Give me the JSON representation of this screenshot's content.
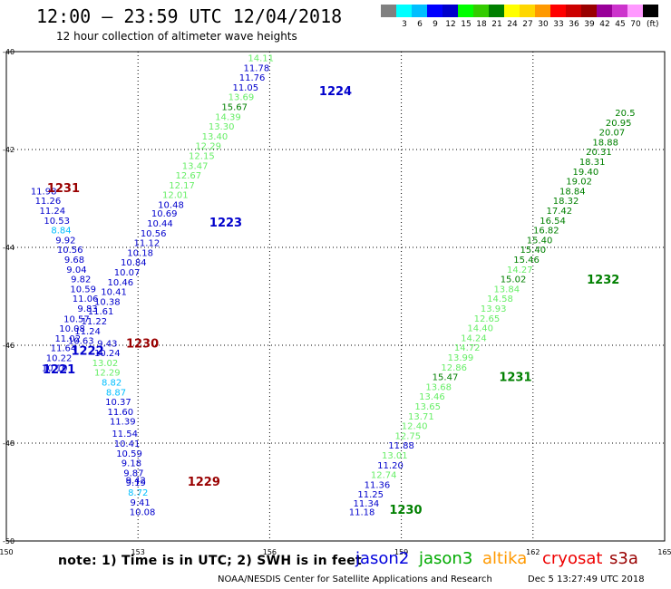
{
  "header": {
    "title": "12:00 – 23:59 UTC 12/04/2018",
    "subtitle": "12 hour collection of altimeter wave heights"
  },
  "color_scale": {
    "unit": "(ft)",
    "levels": [
      {
        "label": "",
        "color": "#808080"
      },
      {
        "label": "3",
        "color": "#00ffff"
      },
      {
        "label": "6",
        "color": "#00bfff"
      },
      {
        "label": "9",
        "color": "#0000ff"
      },
      {
        "label": "12",
        "color": "#0000cc"
      },
      {
        "label": "15",
        "color": "#00ff00"
      },
      {
        "label": "18",
        "color": "#33cc00"
      },
      {
        "label": "21",
        "color": "#008000"
      },
      {
        "label": "24",
        "color": "#ffff00"
      },
      {
        "label": "27",
        "color": "#ffd700"
      },
      {
        "label": "30",
        "color": "#ff9900"
      },
      {
        "label": "33",
        "color": "#ff0000"
      },
      {
        "label": "36",
        "color": "#cc0000"
      },
      {
        "label": "39",
        "color": "#990000"
      },
      {
        "label": "42",
        "color": "#990099"
      },
      {
        "label": "45",
        "color": "#cc33cc"
      },
      {
        "label": "70",
        "color": "#ff99ff"
      },
      {
        "label": "",
        "color": "#000000"
      }
    ]
  },
  "note": "note:  1) Time is in UTC;  2) SWH is in feet",
  "satellites": [
    {
      "name": "jason2",
      "color": "#0000dd"
    },
    {
      "name": "jason3",
      "color": "#00aa00"
    },
    {
      "name": "altika",
      "color": "#ff9900"
    },
    {
      "name": "cryosat",
      "color": "#ee0000"
    },
    {
      "name": "s3a",
      "color": "#990000"
    }
  ],
  "footer": {
    "credit": "NOAA/NESDIS Center for Satellite Applications and Research",
    "timestamp": "Dec  5 13:27:49 UTC 2018"
  },
  "chart_data": {
    "type": "scatter",
    "x_ticks": [
      "150",
      "153",
      "156",
      "159",
      "162",
      "165"
    ],
    "y_ticks": [
      "40",
      "42",
      "44",
      "46",
      "48",
      "50"
    ],
    "xlim": [
      150,
      165
    ],
    "ylim": [
      40,
      50
    ],
    "grid": true,
    "tracks": [
      {
        "label": "1224",
        "satellite": "jason2",
        "label_color": "#0000cc",
        "label_x": 157.5,
        "label_y": 40.8,
        "points": [
          {
            "x": 155.8,
            "y": 40.12,
            "v": "14.11",
            "c": "#66ee66"
          },
          {
            "x": 155.7,
            "y": 40.32,
            "v": "11.78",
            "c": "#0000cc"
          },
          {
            "x": 155.6,
            "y": 40.52,
            "v": "11.76",
            "c": "#0000cc"
          },
          {
            "x": 155.45,
            "y": 40.72,
            "v": "11.05",
            "c": "#0000cc"
          },
          {
            "x": 155.35,
            "y": 40.92,
            "v": "13.69",
            "c": "#66ee66"
          },
          {
            "x": 155.2,
            "y": 41.12,
            "v": "15.67",
            "c": "#008000"
          },
          {
            "x": 155.05,
            "y": 41.32,
            "v": "14.39",
            "c": "#66ee66"
          },
          {
            "x": 154.9,
            "y": 41.52,
            "v": "13.30",
            "c": "#66ee66"
          },
          {
            "x": 154.75,
            "y": 41.72,
            "v": "13.40",
            "c": "#66ee66"
          },
          {
            "x": 154.6,
            "y": 41.92,
            "v": "12.29",
            "c": "#66ee66"
          },
          {
            "x": 154.45,
            "y": 42.12,
            "v": "12.15",
            "c": "#66ee66"
          },
          {
            "x": 154.3,
            "y": 42.32,
            "v": "13.47",
            "c": "#66ee66"
          },
          {
            "x": 154.15,
            "y": 42.52,
            "v": "12.67",
            "c": "#66ee66"
          },
          {
            "x": 154.0,
            "y": 42.72,
            "v": "12.17",
            "c": "#66ee66"
          },
          {
            "x": 153.85,
            "y": 42.92,
            "v": "12.01",
            "c": "#66ee66"
          }
        ]
      },
      {
        "label": "1223",
        "satellite": "jason2",
        "label_color": "#0000cc",
        "label_x": 155.0,
        "label_y": 43.48,
        "points": [
          {
            "x": 153.75,
            "y": 43.12,
            "v": "10.48",
            "c": "#0000cc"
          },
          {
            "x": 153.6,
            "y": 43.3,
            "v": "10.69",
            "c": "#0000cc"
          },
          {
            "x": 153.5,
            "y": 43.5,
            "v": "10.44",
            "c": "#0000cc"
          },
          {
            "x": 153.35,
            "y": 43.7,
            "v": "10.56",
            "c": "#0000cc"
          },
          {
            "x": 153.2,
            "y": 43.9,
            "v": "11.12",
            "c": "#0000cc"
          },
          {
            "x": 153.05,
            "y": 44.1,
            "v": "10.18",
            "c": "#0000cc"
          },
          {
            "x": 152.9,
            "y": 44.3,
            "v": "10.84",
            "c": "#0000cc"
          },
          {
            "x": 152.75,
            "y": 44.5,
            "v": "10.07",
            "c": "#0000cc"
          },
          {
            "x": 152.6,
            "y": 44.7,
            "v": "10.46",
            "c": "#0000cc"
          },
          {
            "x": 152.45,
            "y": 44.9,
            "v": "10.41",
            "c": "#0000cc"
          },
          {
            "x": 152.3,
            "y": 45.1,
            "v": "10.38",
            "c": "#0000cc"
          },
          {
            "x": 152.15,
            "y": 45.3,
            "v": "11.61",
            "c": "#0000cc"
          },
          {
            "x": 152.0,
            "y": 45.5,
            "v": "11.22",
            "c": "#0000cc"
          },
          {
            "x": 151.85,
            "y": 45.7,
            "v": "11.24",
            "c": "#0000cc"
          },
          {
            "x": 151.7,
            "y": 45.9,
            "v": "10.63",
            "c": "#0000cc"
          }
        ]
      },
      {
        "label": "1231",
        "satellite": "s3a",
        "label_color": "#990000",
        "label_x": 151.3,
        "label_y": 42.78,
        "points": [
          {
            "x": 150.85,
            "y": 42.84,
            "v": "11.98",
            "c": "#0000cc"
          },
          {
            "x": 150.95,
            "y": 43.04,
            "v": "11.26",
            "c": "#0000cc"
          },
          {
            "x": 151.05,
            "y": 43.24,
            "v": "11.24",
            "c": "#0000cc"
          },
          {
            "x": 151.15,
            "y": 43.44,
            "v": "10.53",
            "c": "#0000cc"
          },
          {
            "x": 151.25,
            "y": 43.64,
            "v": "8.84",
            "c": "#00bfff"
          },
          {
            "x": 151.35,
            "y": 43.84,
            "v": "9.92",
            "c": "#0000cc"
          },
          {
            "x": 151.45,
            "y": 44.04,
            "v": "10.56",
            "c": "#0000cc"
          },
          {
            "x": 151.55,
            "y": 44.24,
            "v": "9.68",
            "c": "#0000cc"
          },
          {
            "x": 151.6,
            "y": 44.44,
            "v": "9.04",
            "c": "#0000cc"
          },
          {
            "x": 151.7,
            "y": 44.64,
            "v": "9.82",
            "c": "#0000cc"
          },
          {
            "x": 151.75,
            "y": 44.84,
            "v": "10.59",
            "c": "#0000cc"
          },
          {
            "x": 151.8,
            "y": 45.04,
            "v": "11.06",
            "c": "#0000cc"
          },
          {
            "x": 151.85,
            "y": 45.24,
            "v": "9.83",
            "c": "#0000cc"
          }
        ]
      },
      {
        "label": "1230",
        "satellite": "s3a",
        "label_color": "#990000",
        "label_x": 153.1,
        "label_y": 45.95,
        "points": [
          {
            "x": 151.6,
            "y": 45.45,
            "v": "10.57",
            "c": "#0000cc"
          },
          {
            "x": 151.5,
            "y": 45.65,
            "v": "10.08",
            "c": "#0000cc"
          },
          {
            "x": 151.4,
            "y": 45.85,
            "v": "11.02",
            "c": "#0000cc"
          },
          {
            "x": 151.3,
            "y": 46.05,
            "v": "11.64",
            "c": "#0000cc"
          },
          {
            "x": 151.2,
            "y": 46.25,
            "v": "10.22",
            "c": "#0000cc"
          },
          {
            "x": 151.1,
            "y": 46.45,
            "v": "10.10",
            "c": "#0000cc"
          },
          {
            "x": 152.3,
            "y": 45.95,
            "v": "9.43",
            "c": "#0000cc"
          },
          {
            "x": 152.3,
            "y": 46.15,
            "v": "10.24",
            "c": "#0000cc"
          }
        ]
      },
      {
        "label": "1222",
        "satellite": "jason2",
        "label_color": "#0000cc",
        "label_x": 151.85,
        "label_y": 46.1,
        "points": [
          {
            "x": 152.25,
            "y": 46.35,
            "v": "13.02",
            "c": "#66ee66"
          },
          {
            "x": 152.3,
            "y": 46.55,
            "v": "12.29",
            "c": "#66ee66"
          },
          {
            "x": 152.4,
            "y": 46.75,
            "v": "8.82",
            "c": "#00bfff"
          },
          {
            "x": 152.5,
            "y": 46.95,
            "v": "8.87",
            "c": "#00bfff"
          },
          {
            "x": 152.55,
            "y": 47.15,
            "v": "10.37",
            "c": "#0000cc"
          },
          {
            "x": 152.6,
            "y": 47.35,
            "v": "11.60",
            "c": "#0000cc"
          },
          {
            "x": 152.65,
            "y": 47.55,
            "v": "11.39",
            "c": "#0000cc"
          }
        ]
      },
      {
        "label": "1221",
        "satellite": "jason2",
        "label_color": "#0000cc",
        "label_x": 151.2,
        "label_y": 46.48,
        "points": [
          {
            "x": 152.7,
            "y": 47.8,
            "v": "11.54",
            "c": "#0000cc"
          },
          {
            "x": 152.75,
            "y": 48.0,
            "v": "10.41",
            "c": "#0000cc"
          },
          {
            "x": 152.8,
            "y": 48.2,
            "v": "10.59",
            "c": "#0000cc"
          },
          {
            "x": 152.85,
            "y": 48.4,
            "v": "9.18",
            "c": "#0000cc"
          },
          {
            "x": 152.9,
            "y": 48.6,
            "v": "9.87",
            "c": "#0000cc"
          },
          {
            "x": 152.95,
            "y": 48.8,
            "v": "9.19",
            "c": "#0000cc"
          },
          {
            "x": 153.0,
            "y": 49.0,
            "v": "8.72",
            "c": "#00bfff"
          },
          {
            "x": 153.05,
            "y": 49.2,
            "v": "9.41",
            "c": "#0000cc"
          },
          {
            "x": 153.1,
            "y": 49.4,
            "v": "10.08",
            "c": "#0000cc"
          }
        ]
      },
      {
        "label": "1229",
        "satellite": "s3a",
        "label_color": "#990000",
        "label_x": 154.5,
        "label_y": 48.78,
        "points": [
          {
            "x": 152.95,
            "y": 48.75,
            "v": "9.42",
            "c": "#0000cc"
          }
        ]
      },
      {
        "label": "1230",
        "satellite": "jason3",
        "label_color": "#008000",
        "label_x": 159.1,
        "label_y": 49.35,
        "points": [
          {
            "x": 158.1,
            "y": 49.4,
            "v": "11.18",
            "c": "#0000cc"
          },
          {
            "x": 158.2,
            "y": 49.22,
            "v": "11.34",
            "c": "#0000cc"
          },
          {
            "x": 158.3,
            "y": 49.04,
            "v": "11.25",
            "c": "#0000cc"
          },
          {
            "x": 158.45,
            "y": 48.84,
            "v": "11.36",
            "c": "#0000cc"
          },
          {
            "x": 158.6,
            "y": 48.64,
            "v": "12.74",
            "c": "#66ee66"
          },
          {
            "x": 158.75,
            "y": 48.44,
            "v": "11.20",
            "c": "#0000cc"
          },
          {
            "x": 158.85,
            "y": 48.24,
            "v": "13.01",
            "c": "#66ee66"
          },
          {
            "x": 159.0,
            "y": 48.04,
            "v": "11.88",
            "c": "#0000cc"
          },
          {
            "x": 159.15,
            "y": 47.84,
            "v": "12.75",
            "c": "#66ee66"
          },
          {
            "x": 159.3,
            "y": 47.64,
            "v": "12.40",
            "c": "#66ee66"
          },
          {
            "x": 159.45,
            "y": 47.44,
            "v": "13.71",
            "c": "#66ee66"
          },
          {
            "x": 159.6,
            "y": 47.24,
            "v": "13.65",
            "c": "#66ee66"
          },
          {
            "x": 159.7,
            "y": 47.04,
            "v": "13.46",
            "c": "#66ee66"
          },
          {
            "x": 159.85,
            "y": 46.84,
            "v": "13.68",
            "c": "#66ee66"
          },
          {
            "x": 160.0,
            "y": 46.64,
            "v": "15.47",
            "c": "#008000"
          }
        ]
      },
      {
        "label": "1231",
        "satellite": "jason3",
        "label_color": "#008000",
        "label_x": 161.6,
        "label_y": 46.64,
        "points": [
          {
            "x": 160.2,
            "y": 46.44,
            "v": "12.86",
            "c": "#66ee66"
          },
          {
            "x": 160.35,
            "y": 46.24,
            "v": "13.99",
            "c": "#66ee66"
          },
          {
            "x": 160.5,
            "y": 46.04,
            "v": "14.72",
            "c": "#66ee66"
          },
          {
            "x": 160.65,
            "y": 45.84,
            "v": "14.24",
            "c": "#66ee66"
          },
          {
            "x": 160.8,
            "y": 45.64,
            "v": "14.40",
            "c": "#66ee66"
          },
          {
            "x": 160.95,
            "y": 45.44,
            "v": "12.65",
            "c": "#66ee66"
          },
          {
            "x": 161.1,
            "y": 45.24,
            "v": "13.93",
            "c": "#66ee66"
          },
          {
            "x": 161.25,
            "y": 45.04,
            "v": "14.58",
            "c": "#66ee66"
          },
          {
            "x": 161.4,
            "y": 44.84,
            "v": "13.84",
            "c": "#66ee66"
          },
          {
            "x": 161.55,
            "y": 44.64,
            "v": "15.02",
            "c": "#008000"
          }
        ]
      },
      {
        "label": "1232",
        "satellite": "jason3",
        "label_color": "#008000",
        "label_x": 163.6,
        "label_y": 44.65,
        "points": [
          {
            "x": 161.7,
            "y": 44.44,
            "v": "14.27",
            "c": "#66ee66"
          },
          {
            "x": 161.85,
            "y": 44.24,
            "v": "15.46",
            "c": "#008000"
          },
          {
            "x": 162.0,
            "y": 44.04,
            "v": "15.40",
            "c": "#008000"
          },
          {
            "x": 162.15,
            "y": 43.84,
            "v": "15.40",
            "c": "#008000"
          },
          {
            "x": 162.3,
            "y": 43.64,
            "v": "16.82",
            "c": "#008000"
          },
          {
            "x": 162.45,
            "y": 43.44,
            "v": "16.54",
            "c": "#008000"
          },
          {
            "x": 162.6,
            "y": 43.24,
            "v": "17.42",
            "c": "#008000"
          },
          {
            "x": 162.75,
            "y": 43.04,
            "v": "18.32",
            "c": "#008000"
          },
          {
            "x": 162.9,
            "y": 42.84,
            "v": "18.84",
            "c": "#008000"
          },
          {
            "x": 163.05,
            "y": 42.64,
            "v": "19.02",
            "c": "#008000"
          },
          {
            "x": 163.2,
            "y": 42.44,
            "v": "19.40",
            "c": "#008000"
          },
          {
            "x": 163.35,
            "y": 42.24,
            "v": "18.31",
            "c": "#008000"
          },
          {
            "x": 163.5,
            "y": 42.04,
            "v": "20.31",
            "c": "#008000"
          },
          {
            "x": 163.65,
            "y": 41.84,
            "v": "18.88",
            "c": "#008000"
          },
          {
            "x": 163.8,
            "y": 41.64,
            "v": "20.07",
            "c": "#008000"
          },
          {
            "x": 163.95,
            "y": 41.44,
            "v": "20.95",
            "c": "#008000"
          },
          {
            "x": 164.1,
            "y": 41.24,
            "v": "20.5",
            "c": "#008000"
          }
        ]
      }
    ]
  }
}
